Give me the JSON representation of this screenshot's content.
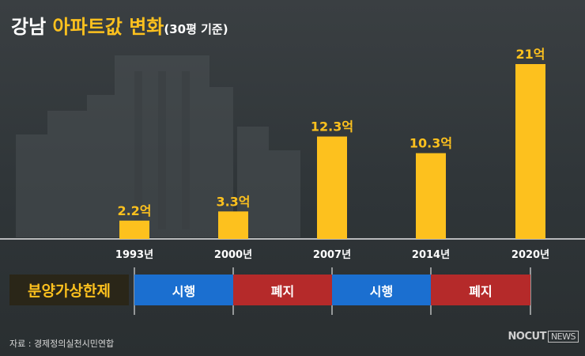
{
  "title": {
    "main": "강남",
    "highlight": "아파트값 변화",
    "sub": "(30평 기준)"
  },
  "chart_data": {
    "type": "bar",
    "categories": [
      "1993년",
      "2000년",
      "2007년",
      "2014년",
      "2020년"
    ],
    "values": [
      2.2,
      3.3,
      12.3,
      10.3,
      21
    ],
    "value_labels": [
      "2.2억",
      "3.3억",
      "12.3억",
      "10.3억",
      "21억"
    ],
    "unit": "억",
    "ylim": [
      0,
      21
    ],
    "bar_color": "#fdc11e"
  },
  "policy": {
    "label": "분양가상한제",
    "segments": [
      {
        "label": "시행",
        "color": "#1b6fd0"
      },
      {
        "label": "폐지",
        "color": "#b52a2a"
      },
      {
        "label": "시행",
        "color": "#1b6fd0"
      },
      {
        "label": "폐지",
        "color": "#b52a2a"
      }
    ]
  },
  "source": "자료 : 경제정의실천시민연합",
  "logo": {
    "main": "NOCUT",
    "box": "NEWS"
  }
}
